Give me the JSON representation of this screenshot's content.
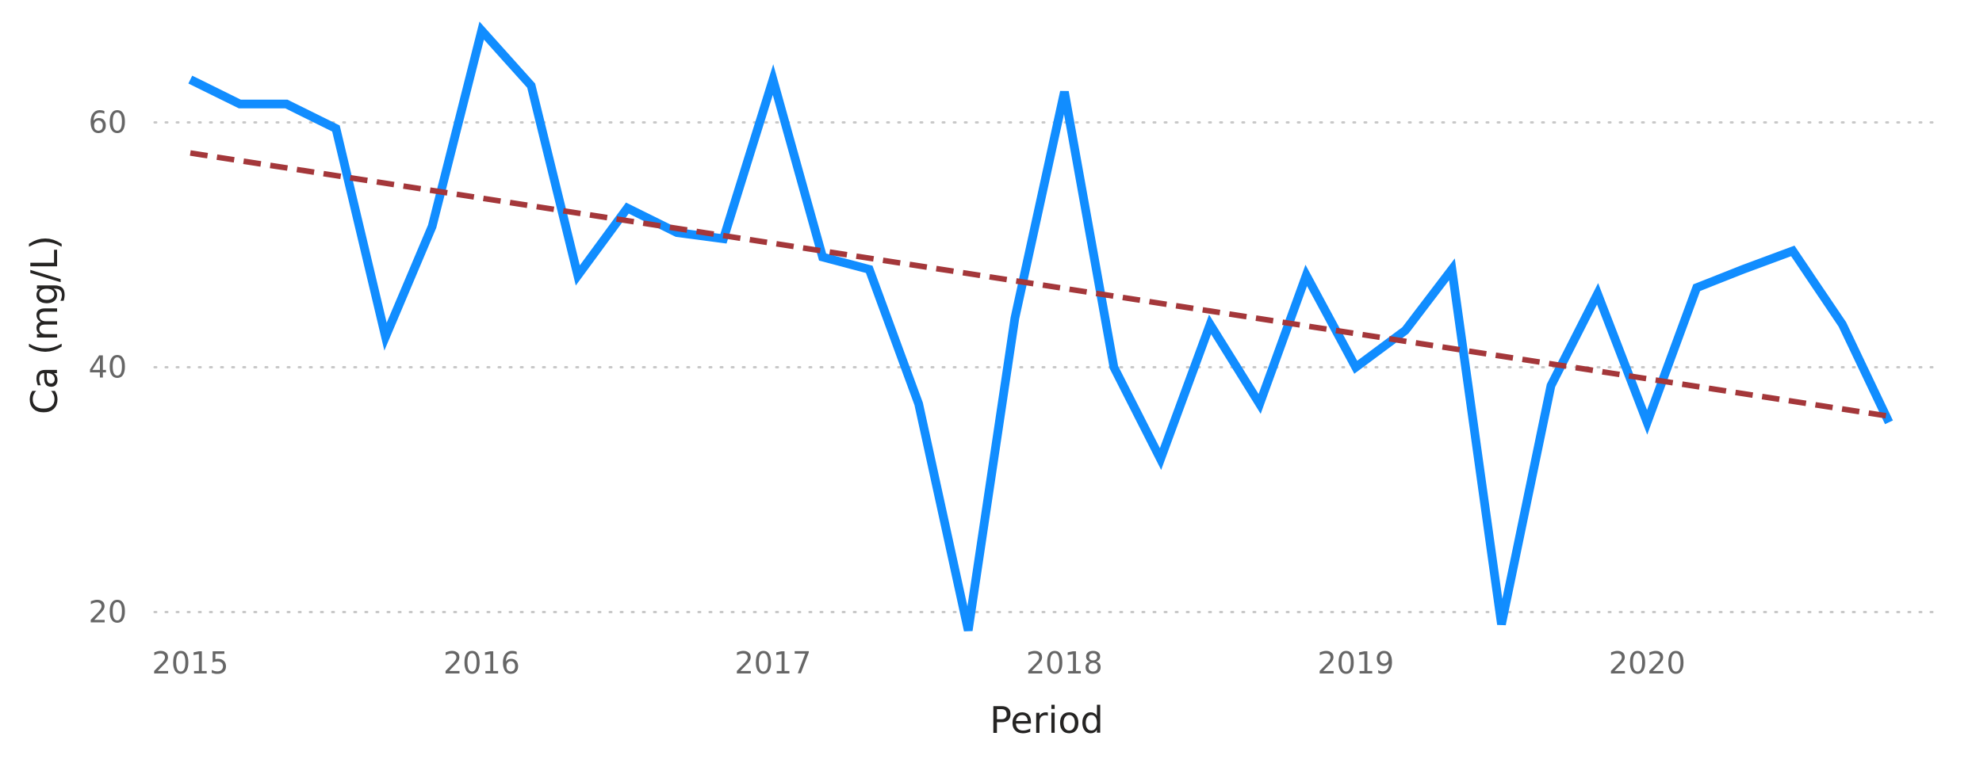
{
  "chart_data": {
    "type": "line",
    "xlabel": "Period",
    "ylabel": "Ca (mg/L)",
    "x_ticks": [
      "2015",
      "2016",
      "2017",
      "2018",
      "2019",
      "2020"
    ],
    "y_ticks": [
      "20",
      "40",
      "60"
    ],
    "xlim": [
      2015,
      2020.9
    ],
    "ylim": [
      10,
      70
    ],
    "grid": "horizontal dotted",
    "series": [
      {
        "color": "#118DFF",
        "x": [
          2015.0,
          2015.17,
          2015.33,
          2015.5,
          2015.67,
          2015.83,
          2016.0,
          2016.17,
          2016.33,
          2016.5,
          2016.67,
          2016.83,
          2017.0,
          2017.17,
          2017.33,
          2017.5,
          2017.67,
          2017.83,
          2018.0,
          2018.17,
          2018.33,
          2018.5,
          2018.67,
          2018.83,
          2019.0,
          2019.17,
          2019.33,
          2019.5,
          2019.67,
          2019.83,
          2020.0,
          2020.17,
          2020.33,
          2020.5,
          2020.67,
          2020.83
        ],
        "values": [
          63.5,
          61.5,
          61.5,
          59.5,
          42.5,
          51.5,
          67.5,
          63.0,
          47.5,
          53.0,
          51.0,
          50.5,
          63.5,
          49.0,
          48.0,
          37.0,
          18.5,
          44.0,
          62.5,
          40.0,
          32.5,
          43.5,
          37.0,
          47.5,
          40.0,
          43.0,
          48.0,
          19.0,
          38.5,
          46.0,
          35.5,
          46.5,
          48.0,
          49.5,
          43.5,
          35.5
        ]
      },
      {
        "color": "#A4373A",
        "style": "dashed",
        "x": [
          2015.0,
          2020.83
        ],
        "values": [
          57.5,
          36.0
        ]
      }
    ]
  }
}
